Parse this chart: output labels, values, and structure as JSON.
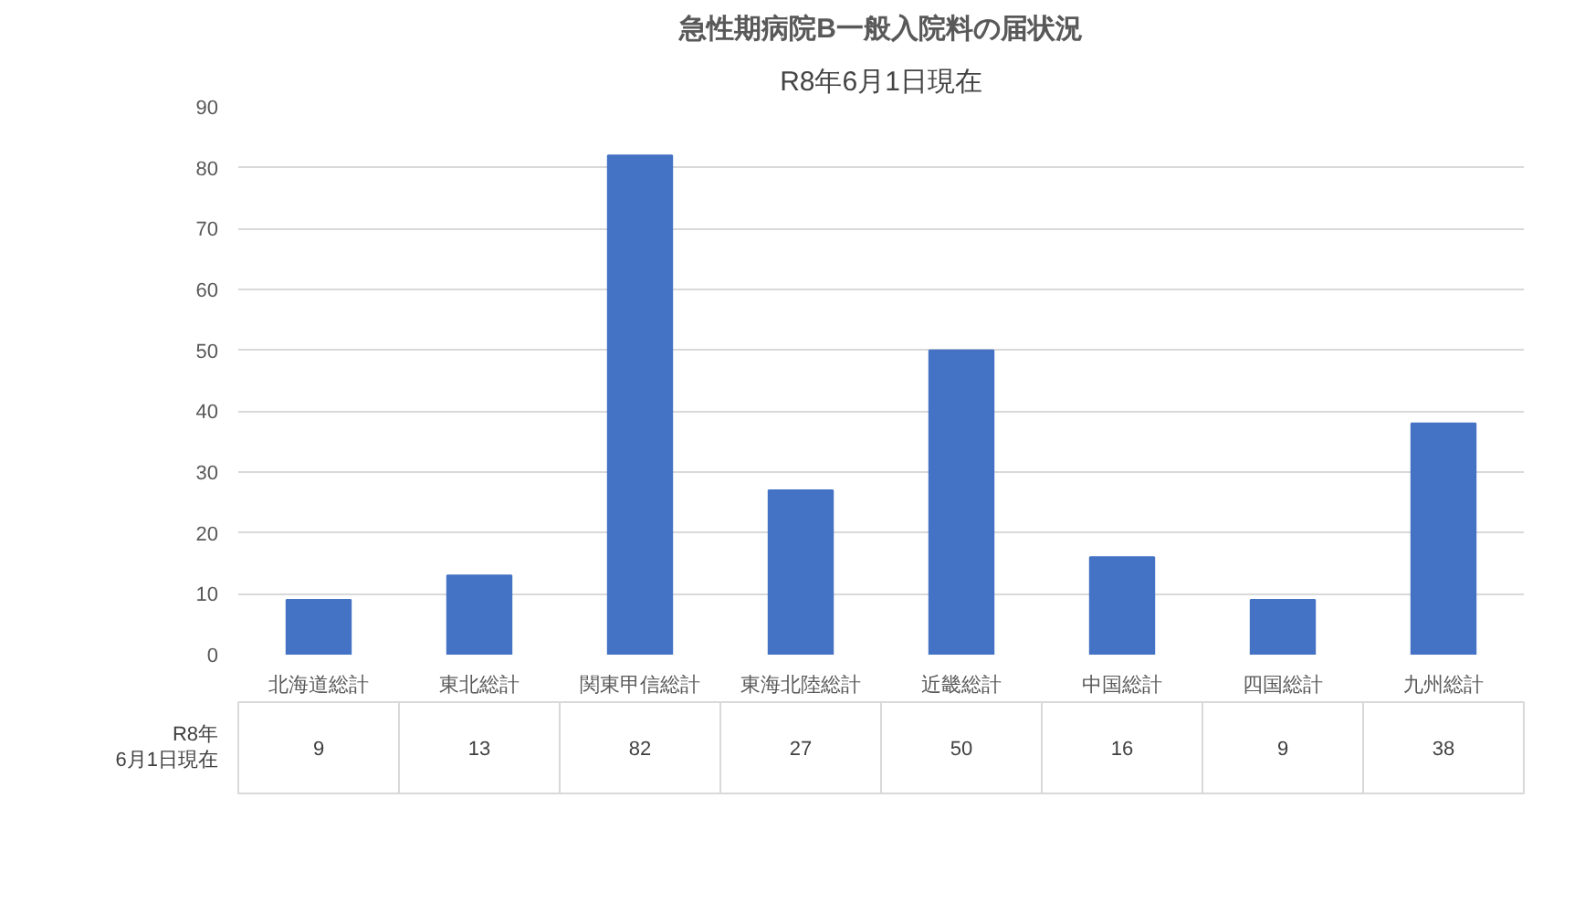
{
  "chart_data": {
    "type": "bar",
    "title": "急性期病院B一般入院料の届状況",
    "subtitle": "R8年6月1日現在",
    "categories": [
      "北海道総計",
      "東北総計",
      "関東甲信総計",
      "東海北陸総計",
      "近畿総計",
      "中国総計",
      "四国総計",
      "九州総計"
    ],
    "series": [
      {
        "name": "R8年 6月1日現在",
        "color": "#4472c4",
        "values": [
          9,
          13,
          82,
          27,
          50,
          16,
          9,
          38
        ]
      }
    ],
    "ylim": [
      0,
      90
    ],
    "yticks": [
      0,
      10,
      20,
      30,
      40,
      50,
      60,
      70,
      80,
      90
    ],
    "grid": "y",
    "data_labels": true,
    "legend": "bottom"
  }
}
